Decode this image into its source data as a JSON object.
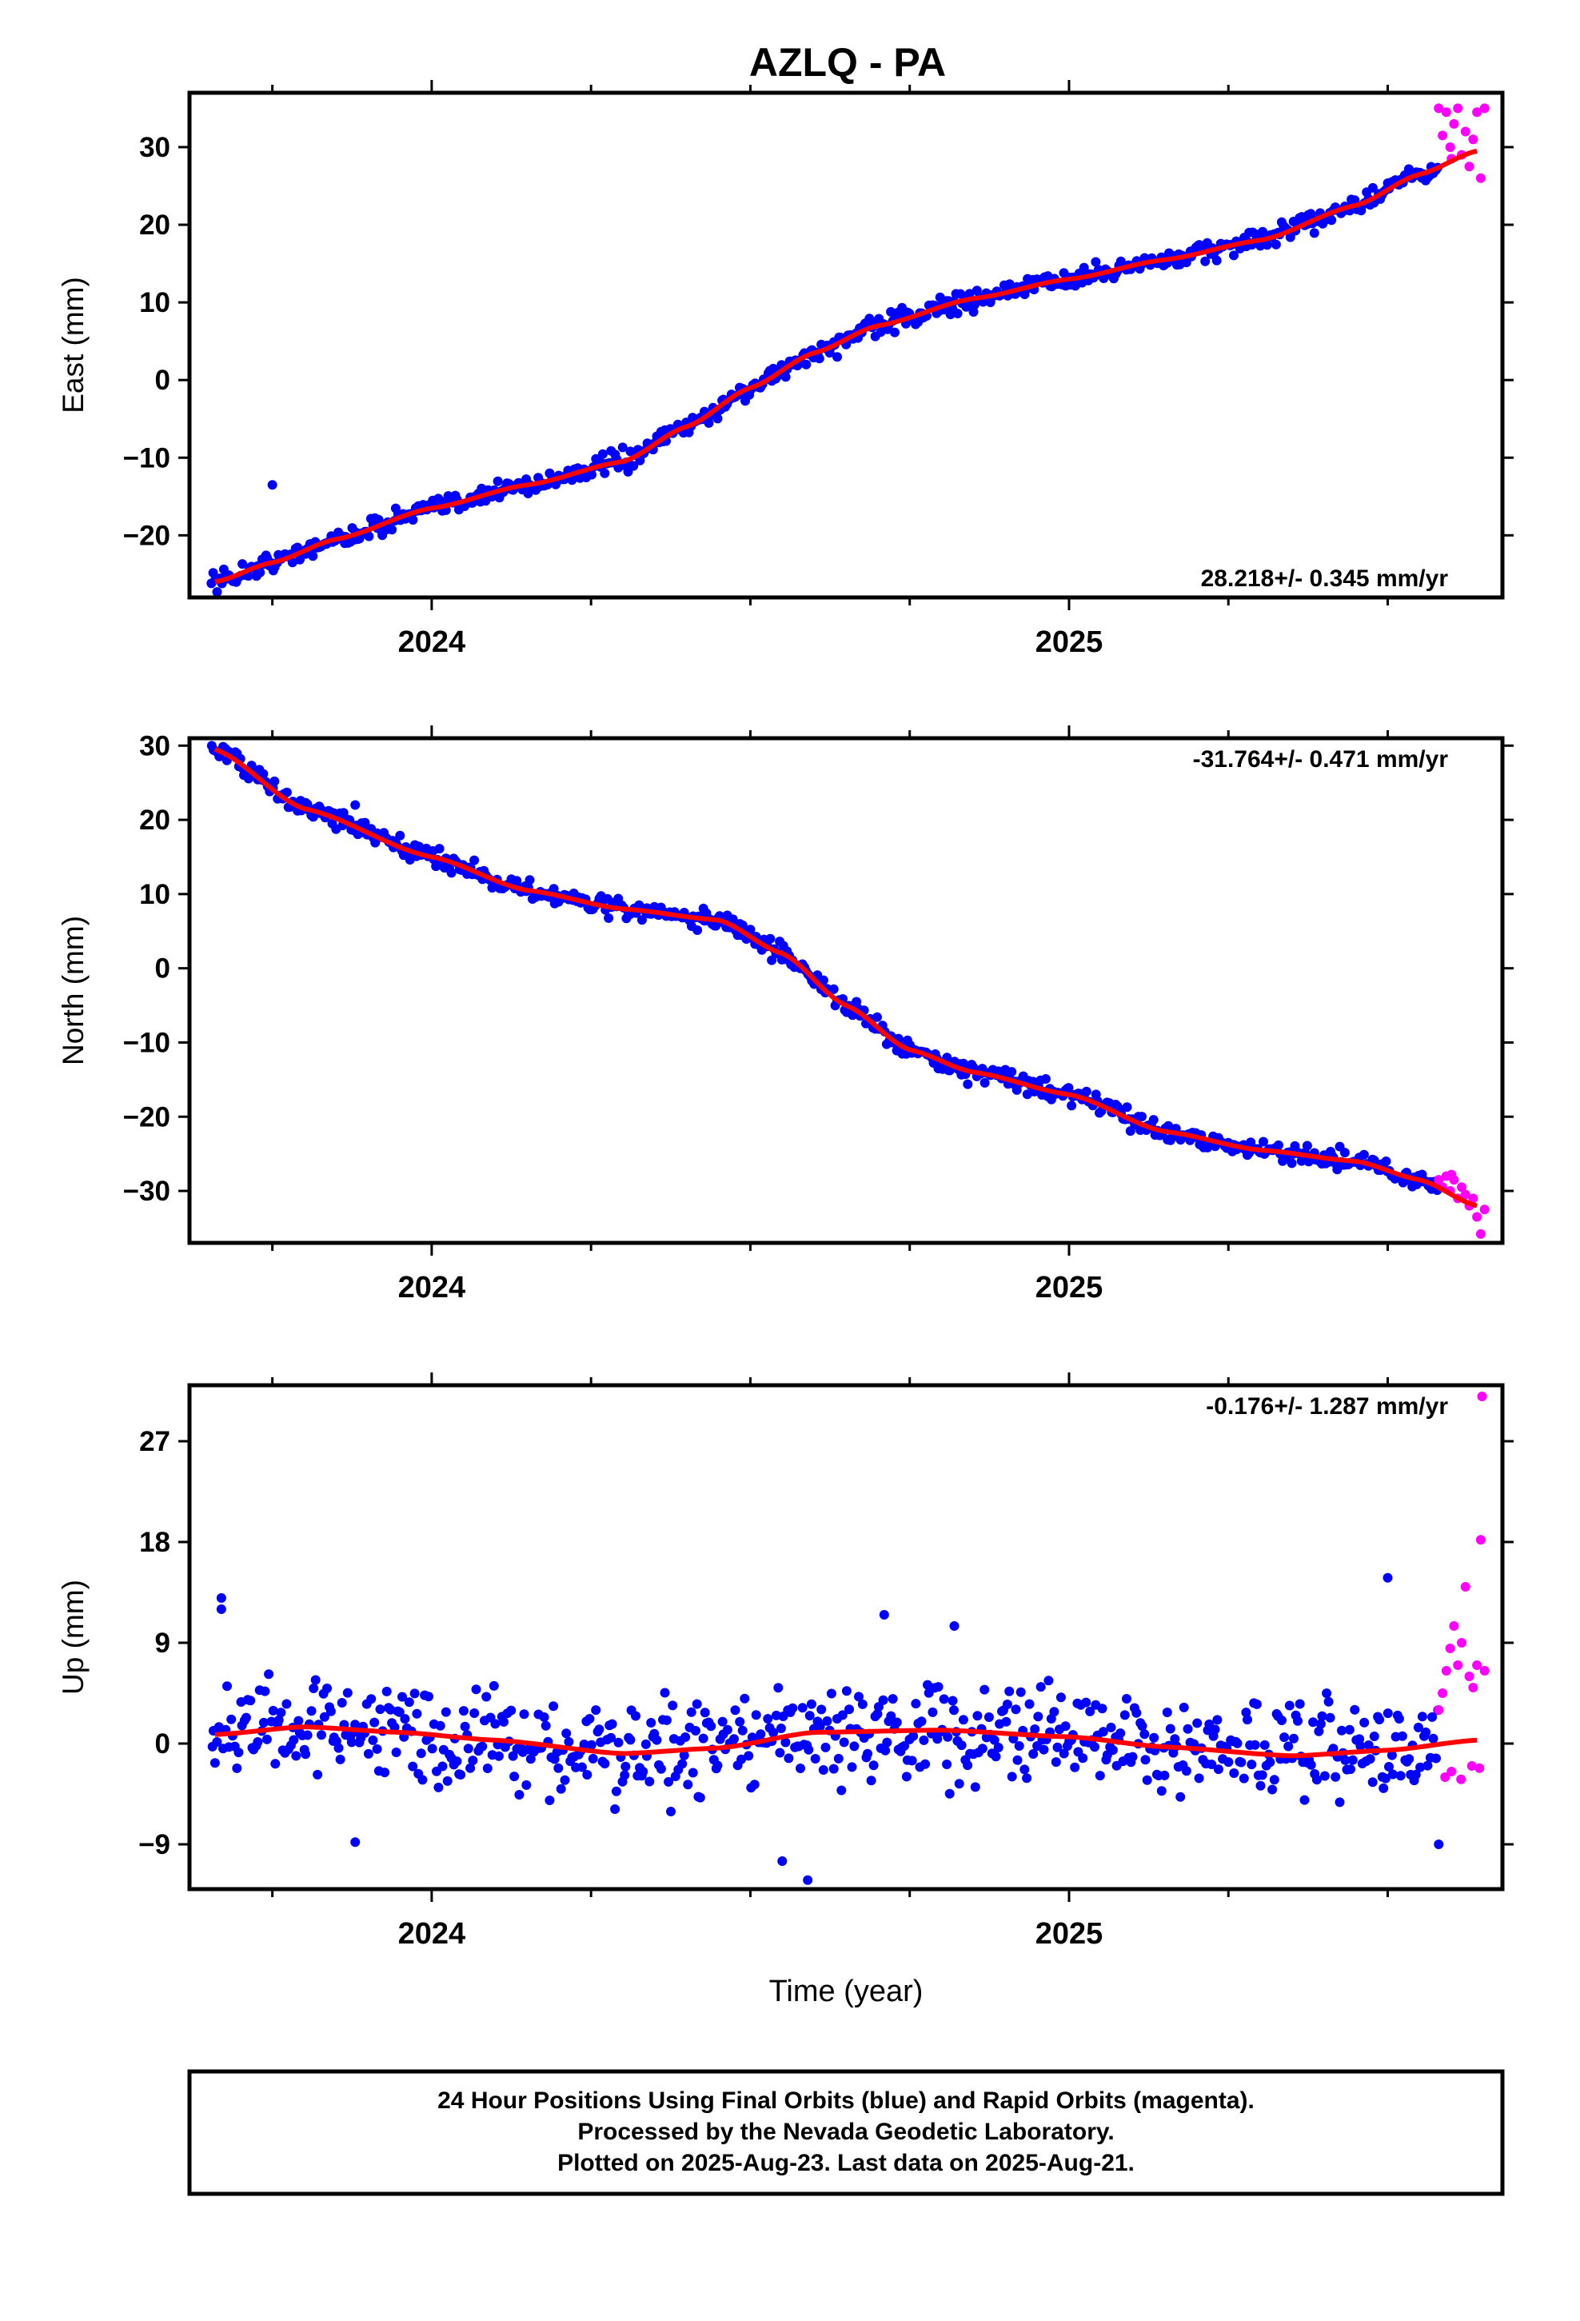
{
  "figure": {
    "title": "AZLQ - PA",
    "footer_lines": [
      "24 Hour Positions Using Final Orbits (blue) and Rapid Orbits (magenta).",
      "Processed by the Nevada Geodetic Laboratory.",
      "Plotted on 2025-Aug-23. Last data on 2025-Aug-21."
    ]
  },
  "colors": {
    "final_orbits": "#0000ff",
    "rapid_orbits": "#ff00ff",
    "trend": "#ff0000",
    "frame": "#000000"
  },
  "chart_data": [
    {
      "type": "scatter",
      "component": "east",
      "ylabel": "East (mm)",
      "xlabel": "",
      "xlim": [
        2023.62,
        2025.68
      ],
      "ylim": [
        -28,
        37
      ],
      "yticks": [
        -20,
        -10,
        0,
        10,
        20,
        30
      ],
      "xtick_labels": [
        "2024",
        "2025"
      ],
      "rate_label": "28.218+/- 0.345 mm/yr",
      "rate_position": "bottom-right",
      "grid": false,
      "noise": 1.1,
      "trend_knots": [
        [
          2023.66,
          -26
        ],
        [
          2023.75,
          -23.5
        ],
        [
          2023.85,
          -20.5
        ],
        [
          2024.0,
          -16.5
        ],
        [
          2024.15,
          -13.5
        ],
        [
          2024.3,
          -10.5
        ],
        [
          2024.4,
          -6
        ],
        [
          2024.5,
          -1
        ],
        [
          2024.6,
          3.5
        ],
        [
          2024.7,
          7
        ],
        [
          2024.85,
          10.5
        ],
        [
          2025.0,
          13
        ],
        [
          2025.15,
          15.5
        ],
        [
          2025.3,
          18
        ],
        [
          2025.45,
          22.5
        ],
        [
          2025.55,
          26.5
        ],
        [
          2025.64,
          29.5
        ]
      ],
      "outliers_final": [
        [
          2023.75,
          -13.5
        ]
      ],
      "rapid_points": [
        [
          2025.58,
          35.0
        ],
        [
          2025.586,
          31.5
        ],
        [
          2025.592,
          34.5
        ],
        [
          2025.598,
          30.0
        ],
        [
          2025.604,
          33.0
        ],
        [
          2025.61,
          35.0
        ],
        [
          2025.616,
          29.0
        ],
        [
          2025.622,
          32.0
        ],
        [
          2025.628,
          27.5
        ],
        [
          2025.634,
          31.0
        ],
        [
          2025.64,
          34.5
        ],
        [
          2025.646,
          26.0
        ],
        [
          2025.652,
          35.0
        ],
        [
          2025.6,
          28.5
        ]
      ]
    },
    {
      "type": "scatter",
      "component": "north",
      "ylabel": "North (mm)",
      "xlabel": "",
      "xlim": [
        2023.62,
        2025.68
      ],
      "ylim": [
        -37,
        31
      ],
      "yticks": [
        -30,
        -20,
        -10,
        0,
        10,
        20,
        30
      ],
      "xtick_labels": [
        "2024",
        "2025"
      ],
      "rate_label": "-31.764+/- 0.471 mm/yr",
      "rate_position": "top-right",
      "grid": false,
      "noise": 1.0,
      "trend_knots": [
        [
          2023.66,
          29.5
        ],
        [
          2023.8,
          21.5
        ],
        [
          2024.0,
          15
        ],
        [
          2024.15,
          10.5
        ],
        [
          2024.3,
          8
        ],
        [
          2024.45,
          6.5
        ],
        [
          2024.55,
          2
        ],
        [
          2024.65,
          -5
        ],
        [
          2024.75,
          -11
        ],
        [
          2024.85,
          -14
        ],
        [
          2025.0,
          -17
        ],
        [
          2025.15,
          -22
        ],
        [
          2025.3,
          -24.5
        ],
        [
          2025.45,
          -26
        ],
        [
          2025.55,
          -28.5
        ],
        [
          2025.64,
          -32
        ]
      ],
      "outliers_final": [
        [
          2023.88,
          22.0
        ]
      ],
      "rapid_points": [
        [
          2025.58,
          -28.5
        ],
        [
          2025.586,
          -29.5
        ],
        [
          2025.592,
          -28.0
        ],
        [
          2025.598,
          -30.0
        ],
        [
          2025.604,
          -28.5
        ],
        [
          2025.61,
          -31.0
        ],
        [
          2025.616,
          -29.5
        ],
        [
          2025.622,
          -30.5
        ],
        [
          2025.628,
          -32.0
        ],
        [
          2025.634,
          -31.0
        ],
        [
          2025.64,
          -33.5
        ],
        [
          2025.646,
          -35.8
        ],
        [
          2025.652,
          -32.5
        ],
        [
          2025.6,
          -27.8
        ]
      ]
    },
    {
      "type": "scatter",
      "component": "up",
      "ylabel": "Up (mm)",
      "xlabel": "Time (year)",
      "xlim": [
        2023.62,
        2025.68
      ],
      "ylim": [
        -13,
        32
      ],
      "yticks": [
        -9,
        0,
        9,
        18,
        27
      ],
      "xtick_labels": [
        "2024",
        "2025"
      ],
      "rate_label": "-0.176+/- 1.287 mm/yr",
      "rate_position": "top-right",
      "grid": false,
      "noise": 3.6,
      "trend_knots": [
        [
          2023.66,
          0.8
        ],
        [
          2023.8,
          1.5
        ],
        [
          2023.95,
          1.0
        ],
        [
          2024.1,
          0.3
        ],
        [
          2024.3,
          -0.9
        ],
        [
          2024.45,
          -0.4
        ],
        [
          2024.6,
          1.0
        ],
        [
          2024.8,
          1.2
        ],
        [
          2025.0,
          0.6
        ],
        [
          2025.15,
          -0.3
        ],
        [
          2025.35,
          -1.1
        ],
        [
          2025.5,
          -0.6
        ],
        [
          2025.64,
          0.3
        ]
      ],
      "outliers_final": [
        [
          2023.67,
          12.0
        ],
        [
          2023.67,
          13.0
        ],
        [
          2024.82,
          10.5
        ],
        [
          2024.71,
          11.5
        ],
        [
          2025.5,
          14.8
        ],
        [
          2024.59,
          -12.2
        ],
        [
          2024.55,
          -10.5
        ],
        [
          2025.58,
          -9.0
        ],
        [
          2023.88,
          -8.8
        ]
      ],
      "rapid_points": [
        [
          2025.58,
          3.0
        ],
        [
          2025.586,
          4.5
        ],
        [
          2025.592,
          6.5
        ],
        [
          2025.598,
          8.5
        ],
        [
          2025.604,
          10.5
        ],
        [
          2025.61,
          7.0
        ],
        [
          2025.616,
          9.0
        ],
        [
          2025.622,
          14.0
        ],
        [
          2025.628,
          6.0
        ],
        [
          2025.634,
          5.0
        ],
        [
          2025.64,
          7.0
        ],
        [
          2025.646,
          18.2
        ],
        [
          2025.652,
          6.5
        ],
        [
          2025.59,
          -3.0
        ],
        [
          2025.6,
          -2.5
        ],
        [
          2025.615,
          -3.2
        ],
        [
          2025.632,
          -2.0
        ],
        [
          2025.644,
          -2.2
        ],
        [
          2025.648,
          31.0
        ]
      ]
    }
  ]
}
